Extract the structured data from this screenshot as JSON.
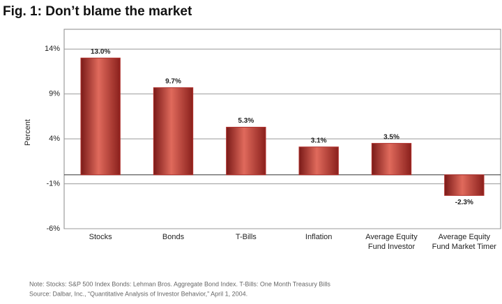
{
  "chart_data": {
    "type": "bar",
    "title": "Fig. 1: Don’t blame the market",
    "y_label": "Percent",
    "categories": [
      "Stocks",
      "Bonds",
      "T-Bills",
      "Inflation",
      "Average Equity Fund Investor",
      "Average Equity Fund Market Timer"
    ],
    "values": [
      13.0,
      9.7,
      5.3,
      3.1,
      3.5,
      -2.3
    ],
    "value_labels": [
      "13.0%",
      "9.7%",
      "5.3%",
      "3.1%",
      "3.5%",
      "-2.3%"
    ],
    "color": "#b0302c",
    "ylim": [
      -6,
      16.2
    ],
    "yticks": [
      {
        "value": -6,
        "label": "-6%"
      },
      {
        "value": -1,
        "label": "-1%"
      },
      {
        "value": 4,
        "label": "4%"
      },
      {
        "value": 9,
        "label": "9%"
      },
      {
        "value": 14,
        "label": "14%"
      }
    ],
    "grid": true,
    "notes": [
      "Note: Stocks: S&P 500 Index Bonds: Lehman Bros. Aggregate Bond Index. T-Bills: One Month Treasury Bills",
      "Source: Dalbar, Inc., “Quantitative Analysis of Investor Behavior,” April 1, 2004."
    ]
  }
}
